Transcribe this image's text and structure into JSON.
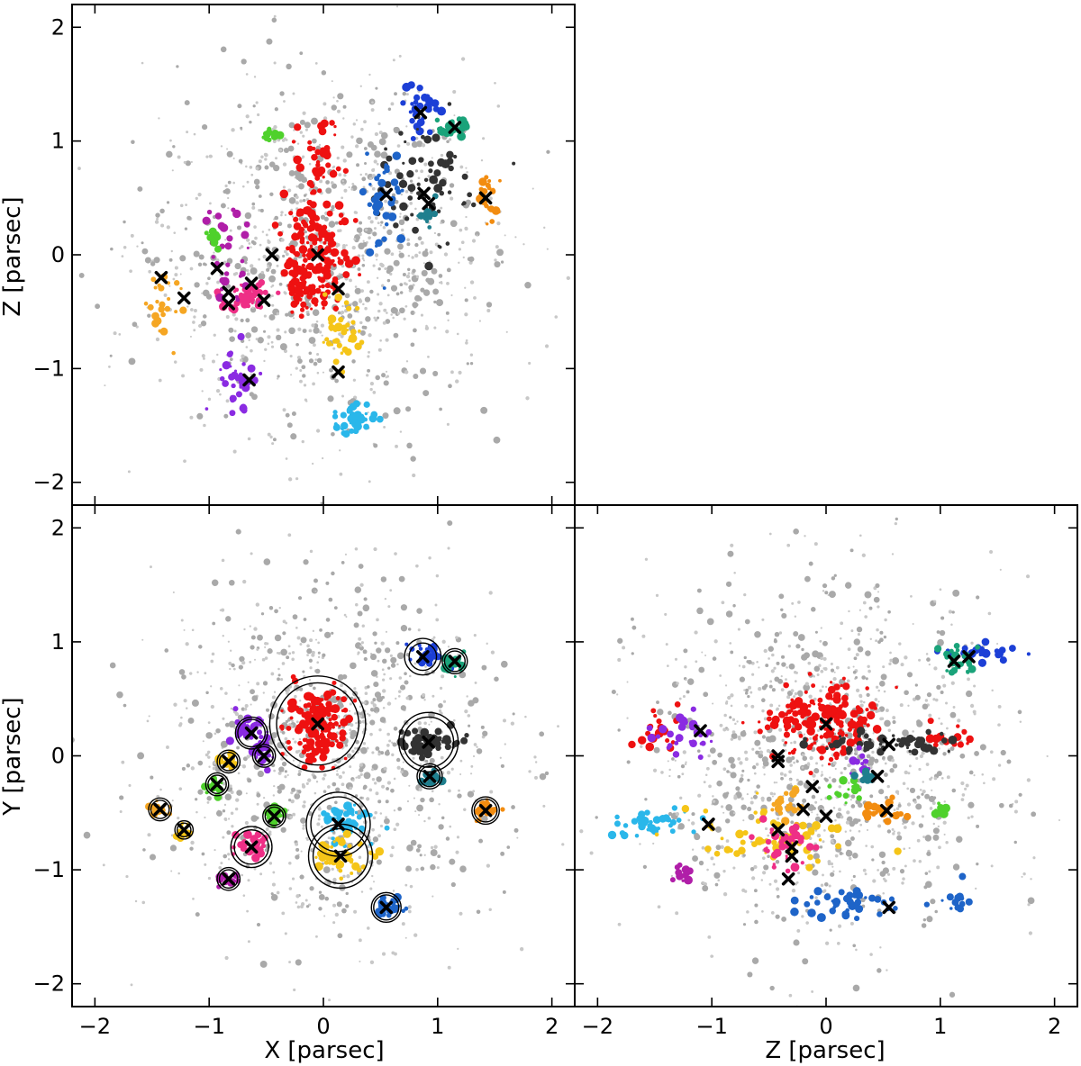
{
  "colors": {
    "background_stars": "#a9a9a9",
    "background_stars_light": "#c8c8c8",
    "marker": "#000000",
    "red": "#ee1111",
    "blue": "#1c3fd6",
    "green_teal": "#1aa37a",
    "dark_gray": "#333333",
    "orange": "#f28c10",
    "gold": "#f5c518",
    "pink": "#ee2f86",
    "purple": "#8a2be2",
    "magenta": "#b01ea8",
    "lime": "#4fd12c",
    "sky": "#2ab7ea",
    "teal": "#1f7f8e",
    "steel_blue": "#1e64c8",
    "amber": "#f5a623"
  },
  "chart_data": [
    {
      "type": "scatter",
      "panel": "top-left",
      "xlabel": "",
      "ylabel": "Z [parsec]",
      "xlim": [
        -2.2,
        2.2
      ],
      "ylim": [
        -2.2,
        2.2
      ],
      "xticks": [
        -2,
        -1,
        0,
        1,
        2
      ],
      "yticks": [
        -2,
        -1,
        0,
        1,
        2
      ],
      "xtick_labels": [
        "",
        "",
        "",
        "",
        ""
      ],
      "ytick_labels": [
        "−2",
        "−1",
        "0",
        "1",
        "2"
      ],
      "clusters": [
        {
          "color": "red",
          "x": -0.05,
          "y": 0.0,
          "spread": [
            0.14,
            0.25
          ],
          "n": 160
        },
        {
          "color": "red",
          "x": -0.15,
          "y": -0.3,
          "spread": [
            0.1,
            0.12
          ],
          "n": 50
        },
        {
          "color": "red",
          "x": -0.05,
          "y": 0.85,
          "spread": [
            0.1,
            0.2
          ],
          "n": 40
        },
        {
          "color": "blue",
          "x": 0.85,
          "y": 1.3,
          "spread": [
            0.08,
            0.1
          ],
          "n": 30
        },
        {
          "color": "green_teal",
          "x": 1.12,
          "y": 1.12,
          "spread": [
            0.07,
            0.05
          ],
          "n": 25
        },
        {
          "color": "dark_gray",
          "x": 0.9,
          "y": 0.6,
          "spread": [
            0.2,
            0.25
          ],
          "n": 70
        },
        {
          "color": "orange",
          "x": 1.42,
          "y": 0.5,
          "spread": [
            0.05,
            0.15
          ],
          "n": 25
        },
        {
          "color": "steel_blue",
          "x": 0.55,
          "y": 0.45,
          "spread": [
            0.08,
            0.25
          ],
          "n": 35
        },
        {
          "color": "teal",
          "x": 0.92,
          "y": 0.35,
          "spread": [
            0.05,
            0.05
          ],
          "n": 15
        },
        {
          "color": "pink",
          "x": -0.65,
          "y": -0.35,
          "spread": [
            0.12,
            0.08
          ],
          "n": 50
        },
        {
          "color": "purple",
          "x": -0.75,
          "y": -1.15,
          "spread": [
            0.08,
            0.12
          ],
          "n": 40
        },
        {
          "color": "magenta",
          "x": -0.8,
          "y": -0.0,
          "spread": [
            0.1,
            0.2
          ],
          "n": 30
        },
        {
          "color": "gold",
          "x": 0.15,
          "y": -0.7,
          "spread": [
            0.1,
            0.15
          ],
          "n": 40
        },
        {
          "color": "sky",
          "x": 0.25,
          "y": -1.45,
          "spread": [
            0.12,
            0.08
          ],
          "n": 35
        },
        {
          "color": "lime",
          "x": -0.45,
          "y": 1.05,
          "spread": [
            0.04,
            0.04
          ],
          "n": 12
        },
        {
          "color": "amber",
          "x": -1.4,
          "y": -0.4,
          "spread": [
            0.08,
            0.15
          ],
          "n": 25
        },
        {
          "color": "lime",
          "x": -0.95,
          "y": 0.15,
          "spread": [
            0.03,
            0.04
          ],
          "n": 10
        }
      ],
      "markers": [
        [
          -0.05,
          0.0
        ],
        [
          0.85,
          1.25
        ],
        [
          1.15,
          1.12
        ],
        [
          0.55,
          0.53
        ],
        [
          0.88,
          0.54
        ],
        [
          0.92,
          0.45
        ],
        [
          1.42,
          0.5
        ],
        [
          -0.45,
          0.0
        ],
        [
          -0.93,
          -0.12
        ],
        [
          -1.42,
          -0.2
        ],
        [
          -1.22,
          -0.38
        ],
        [
          -0.83,
          -0.33
        ],
        [
          -0.83,
          -0.43
        ],
        [
          -0.63,
          -0.25
        ],
        [
          -0.52,
          -0.4
        ],
        [
          0.13,
          -0.3
        ],
        [
          0.13,
          -1.03
        ],
        [
          -0.65,
          -1.1
        ]
      ],
      "circles": []
    },
    {
      "type": "scatter",
      "panel": "bottom-left",
      "xlabel": "X [parsec]",
      "ylabel": "Y [parsec]",
      "xlim": [
        -2.2,
        2.2
      ],
      "ylim": [
        -2.2,
        2.2
      ],
      "xticks": [
        -2,
        -1,
        0,
        1,
        2
      ],
      "yticks": [
        -2,
        -1,
        0,
        1,
        2
      ],
      "xtick_labels": [
        "−2",
        "−1",
        "0",
        "1",
        "2"
      ],
      "ytick_labels": [
        "−2",
        "−1",
        "0",
        "1",
        "2"
      ],
      "clusters": [
        {
          "color": "red",
          "x": -0.05,
          "y": 0.28,
          "spread": [
            0.13,
            0.15
          ],
          "n": 170
        },
        {
          "color": "blue",
          "x": 0.88,
          "y": 0.88,
          "spread": [
            0.08,
            0.05
          ],
          "n": 30
        },
        {
          "color": "green_teal",
          "x": 1.15,
          "y": 0.83,
          "spread": [
            0.05,
            0.04
          ],
          "n": 25
        },
        {
          "color": "dark_gray",
          "x": 0.92,
          "y": 0.12,
          "spread": [
            0.14,
            0.06
          ],
          "n": 60
        },
        {
          "color": "teal",
          "x": 0.93,
          "y": -0.18,
          "spread": [
            0.05,
            0.04
          ],
          "n": 15
        },
        {
          "color": "orange",
          "x": 1.42,
          "y": -0.48,
          "spread": [
            0.06,
            0.05
          ],
          "n": 25
        },
        {
          "color": "sky",
          "x": 0.2,
          "y": -0.58,
          "spread": [
            0.12,
            0.08
          ],
          "n": 45
        },
        {
          "color": "gold",
          "x": 0.15,
          "y": -0.88,
          "spread": [
            0.13,
            0.08
          ],
          "n": 45
        },
        {
          "color": "steel_blue",
          "x": 0.55,
          "y": -1.33,
          "spread": [
            0.06,
            0.05
          ],
          "n": 25
        },
        {
          "color": "purple",
          "x": -0.63,
          "y": 0.2,
          "spread": [
            0.07,
            0.06
          ],
          "n": 30
        },
        {
          "color": "purple",
          "x": -0.52,
          "y": 0.0,
          "spread": [
            0.05,
            0.05
          ],
          "n": 15
        },
        {
          "color": "gold",
          "x": -0.83,
          "y": -0.05,
          "spread": [
            0.04,
            0.04
          ],
          "n": 12
        },
        {
          "color": "lime",
          "x": -0.93,
          "y": -0.25,
          "spread": [
            0.05,
            0.04
          ],
          "n": 15
        },
        {
          "color": "lime",
          "x": -0.43,
          "y": -0.53,
          "spread": [
            0.05,
            0.04
          ],
          "n": 15
        },
        {
          "color": "pink",
          "x": -0.63,
          "y": -0.8,
          "spread": [
            0.08,
            0.07
          ],
          "n": 35
        },
        {
          "color": "magenta",
          "x": -0.83,
          "y": -1.08,
          "spread": [
            0.04,
            0.04
          ],
          "n": 15
        },
        {
          "color": "amber",
          "x": -1.43,
          "y": -0.47,
          "spread": [
            0.05,
            0.04
          ],
          "n": 15
        },
        {
          "color": "gold",
          "x": -1.22,
          "y": -0.65,
          "spread": [
            0.04,
            0.03
          ],
          "n": 10
        }
      ],
      "markers": [
        [
          -0.05,
          0.28
        ],
        [
          0.87,
          0.87
        ],
        [
          1.15,
          0.83
        ],
        [
          0.92,
          0.12
        ],
        [
          0.93,
          -0.18
        ],
        [
          1.42,
          -0.48
        ],
        [
          0.13,
          -0.6
        ],
        [
          0.15,
          -0.88
        ],
        [
          0.55,
          -1.33
        ],
        [
          -0.63,
          0.2
        ],
        [
          -0.52,
          0.0
        ],
        [
          -0.83,
          -0.05
        ],
        [
          -0.93,
          -0.25
        ],
        [
          -0.43,
          -0.53
        ],
        [
          -0.63,
          -0.8
        ],
        [
          -0.83,
          -1.08
        ],
        [
          -1.43,
          -0.47
        ],
        [
          -1.22,
          -0.65
        ]
      ],
      "circles": [
        {
          "x": -0.05,
          "y": 0.28,
          "r": [
            0.42,
            0.36
          ]
        },
        {
          "x": 0.87,
          "y": 0.87,
          "r": [
            0.16,
            0.12
          ]
        },
        {
          "x": 1.15,
          "y": 0.83,
          "r": [
            0.11,
            0.09
          ]
        },
        {
          "x": 0.92,
          "y": 0.12,
          "r": [
            0.26,
            0.22
          ]
        },
        {
          "x": 0.93,
          "y": -0.18,
          "r": [
            0.11,
            0.09
          ]
        },
        {
          "x": 1.42,
          "y": -0.48,
          "r": [
            0.12,
            0.1
          ]
        },
        {
          "x": 0.13,
          "y": -0.6,
          "r": [
            0.28,
            0.24
          ]
        },
        {
          "x": 0.15,
          "y": -0.88,
          "r": [
            0.28,
            0.24
          ]
        },
        {
          "x": 0.55,
          "y": -1.33,
          "r": [
            0.13,
            0.11
          ]
        },
        {
          "x": -0.63,
          "y": 0.2,
          "r": [
            0.14,
            0.12
          ]
        },
        {
          "x": -0.52,
          "y": 0.0,
          "r": [
            0.1,
            0.08
          ]
        },
        {
          "x": -0.83,
          "y": -0.05,
          "r": [
            0.1,
            0.08
          ]
        },
        {
          "x": -0.93,
          "y": -0.25,
          "r": [
            0.1,
            0.08
          ]
        },
        {
          "x": -0.43,
          "y": -0.53,
          "r": [
            0.1,
            0.08
          ]
        },
        {
          "x": -0.63,
          "y": -0.8,
          "r": [
            0.18,
            0.15
          ]
        },
        {
          "x": -0.83,
          "y": -1.08,
          "r": [
            0.1,
            0.08
          ]
        },
        {
          "x": -1.43,
          "y": -0.47,
          "r": [
            0.1,
            0.08
          ]
        },
        {
          "x": -1.22,
          "y": -0.65,
          "r": [
            0.08,
            0.06
          ]
        }
      ]
    },
    {
      "type": "scatter",
      "panel": "bottom-right",
      "xlabel": "Z [parsec]",
      "ylabel": "",
      "xlim": [
        -2.2,
        2.2
      ],
      "ylim": [
        -2.2,
        2.2
      ],
      "xticks": [
        -2,
        -1,
        0,
        1,
        2
      ],
      "yticks": [
        -2,
        -1,
        0,
        1,
        2
      ],
      "xtick_labels": [
        "−2",
        "−1",
        "0",
        "1",
        "2"
      ],
      "ytick_labels": [
        "",
        "",
        "",
        "",
        ""
      ],
      "clusters": [
        {
          "color": "red",
          "x": 0.0,
          "y": 0.3,
          "spread": [
            0.25,
            0.15
          ],
          "n": 170
        },
        {
          "color": "red",
          "x": -1.5,
          "y": 0.25,
          "spread": [
            0.1,
            0.1
          ],
          "n": 20
        },
        {
          "color": "red",
          "x": 1.05,
          "y": 0.15,
          "spread": [
            0.1,
            0.05
          ],
          "n": 15
        },
        {
          "color": "blue",
          "x": 1.35,
          "y": 0.9,
          "spread": [
            0.2,
            0.05
          ],
          "n": 25
        },
        {
          "color": "green_teal",
          "x": 1.15,
          "y": 0.83,
          "spread": [
            0.07,
            0.06
          ],
          "n": 25
        },
        {
          "color": "dark_gray",
          "x": 0.6,
          "y": 0.12,
          "spread": [
            0.3,
            0.05
          ],
          "n": 60
        },
        {
          "color": "purple",
          "x": -1.2,
          "y": 0.2,
          "spread": [
            0.15,
            0.08
          ],
          "n": 30
        },
        {
          "color": "purple",
          "x": 0.3,
          "y": -0.05,
          "spread": [
            0.05,
            0.05
          ],
          "n": 12
        },
        {
          "color": "sky",
          "x": -1.5,
          "y": -0.6,
          "spread": [
            0.2,
            0.06
          ],
          "n": 40
        },
        {
          "color": "gold",
          "x": -0.4,
          "y": -0.7,
          "spread": [
            0.4,
            0.15
          ],
          "n": 60
        },
        {
          "color": "amber",
          "x": -0.35,
          "y": -0.45,
          "spread": [
            0.08,
            0.08
          ],
          "n": 20
        },
        {
          "color": "pink",
          "x": -0.35,
          "y": -0.8,
          "spread": [
            0.1,
            0.1
          ],
          "n": 40
        },
        {
          "color": "orange",
          "x": 0.5,
          "y": -0.48,
          "spread": [
            0.1,
            0.05
          ],
          "n": 25
        },
        {
          "color": "steel_blue",
          "x": 0.2,
          "y": -1.3,
          "spread": [
            0.25,
            0.06
          ],
          "n": 40
        },
        {
          "color": "steel_blue",
          "x": 1.15,
          "y": -1.25,
          "spread": [
            0.05,
            0.05
          ],
          "n": 15
        },
        {
          "color": "lime",
          "x": 0.15,
          "y": -0.3,
          "spread": [
            0.1,
            0.05
          ],
          "n": 15
        },
        {
          "color": "lime",
          "x": 1.0,
          "y": -0.5,
          "spread": [
            0.04,
            0.04
          ],
          "n": 10
        },
        {
          "color": "teal",
          "x": 0.35,
          "y": -0.2,
          "spread": [
            0.04,
            0.04
          ],
          "n": 12
        },
        {
          "color": "magenta",
          "x": -1.25,
          "y": -1.05,
          "spread": [
            0.05,
            0.04
          ],
          "n": 12
        }
      ],
      "markers": [
        [
          -0.0,
          0.28
        ],
        [
          1.25,
          0.87
        ],
        [
          1.12,
          0.83
        ],
        [
          0.55,
          0.1
        ],
        [
          0.45,
          -0.18
        ],
        [
          0.53,
          -0.48
        ],
        [
          -1.1,
          0.22
        ],
        [
          -0.42,
          -0.05
        ],
        [
          -0.42,
          0.0
        ],
        [
          -1.03,
          -0.6
        ],
        [
          -0.42,
          -0.65
        ],
        [
          -0.12,
          -0.27
        ],
        [
          -0.2,
          -0.47
        ],
        [
          0.0,
          -0.53
        ],
        [
          -0.3,
          -0.8
        ],
        [
          -0.3,
          -0.88
        ],
        [
          -0.33,
          -1.08
        ],
        [
          0.55,
          -1.33
        ]
      ],
      "circles": []
    }
  ]
}
